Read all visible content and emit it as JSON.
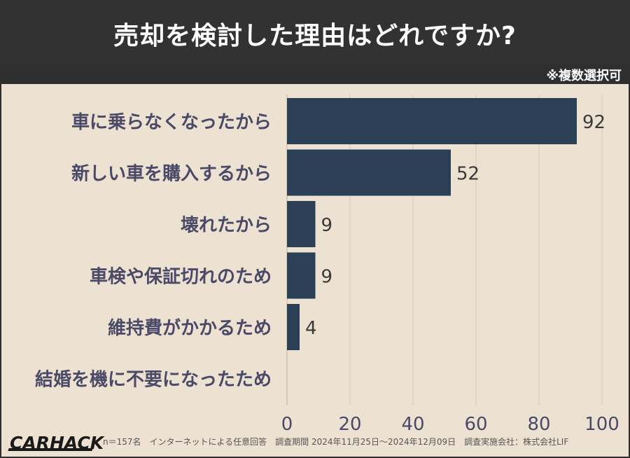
{
  "header": {
    "title": "売却を検討した理由はどれですか?",
    "note": "※複数選択可"
  },
  "footer": {
    "logo": "CARHACK",
    "footnote": "n＝157名　インターネットによる任意回答　調査期間 2024年11月25日〜2024年12月09日　調査実施会社：株式会社LIF"
  },
  "colors": {
    "bar": "#2b4054",
    "background": "#ede2d1",
    "header": "#323232",
    "label": "#4a4a68",
    "grid": "#d2c8b7"
  },
  "chart_data": {
    "type": "bar",
    "orientation": "horizontal",
    "categories": [
      "車に乗らなくなったから",
      "新しい車を購入するから",
      "壊れたから",
      "車検や保証切れのため",
      "維持費がかかるため",
      "結婚を機に不要になったため"
    ],
    "values": [
      92,
      52,
      9,
      9,
      4,
      0
    ],
    "data_labels": [
      "92",
      "52",
      "9",
      "9",
      "4",
      ""
    ],
    "xlim": [
      0,
      100
    ],
    "xticks": [
      0,
      20,
      40,
      60,
      80,
      100
    ],
    "grid": true
  }
}
